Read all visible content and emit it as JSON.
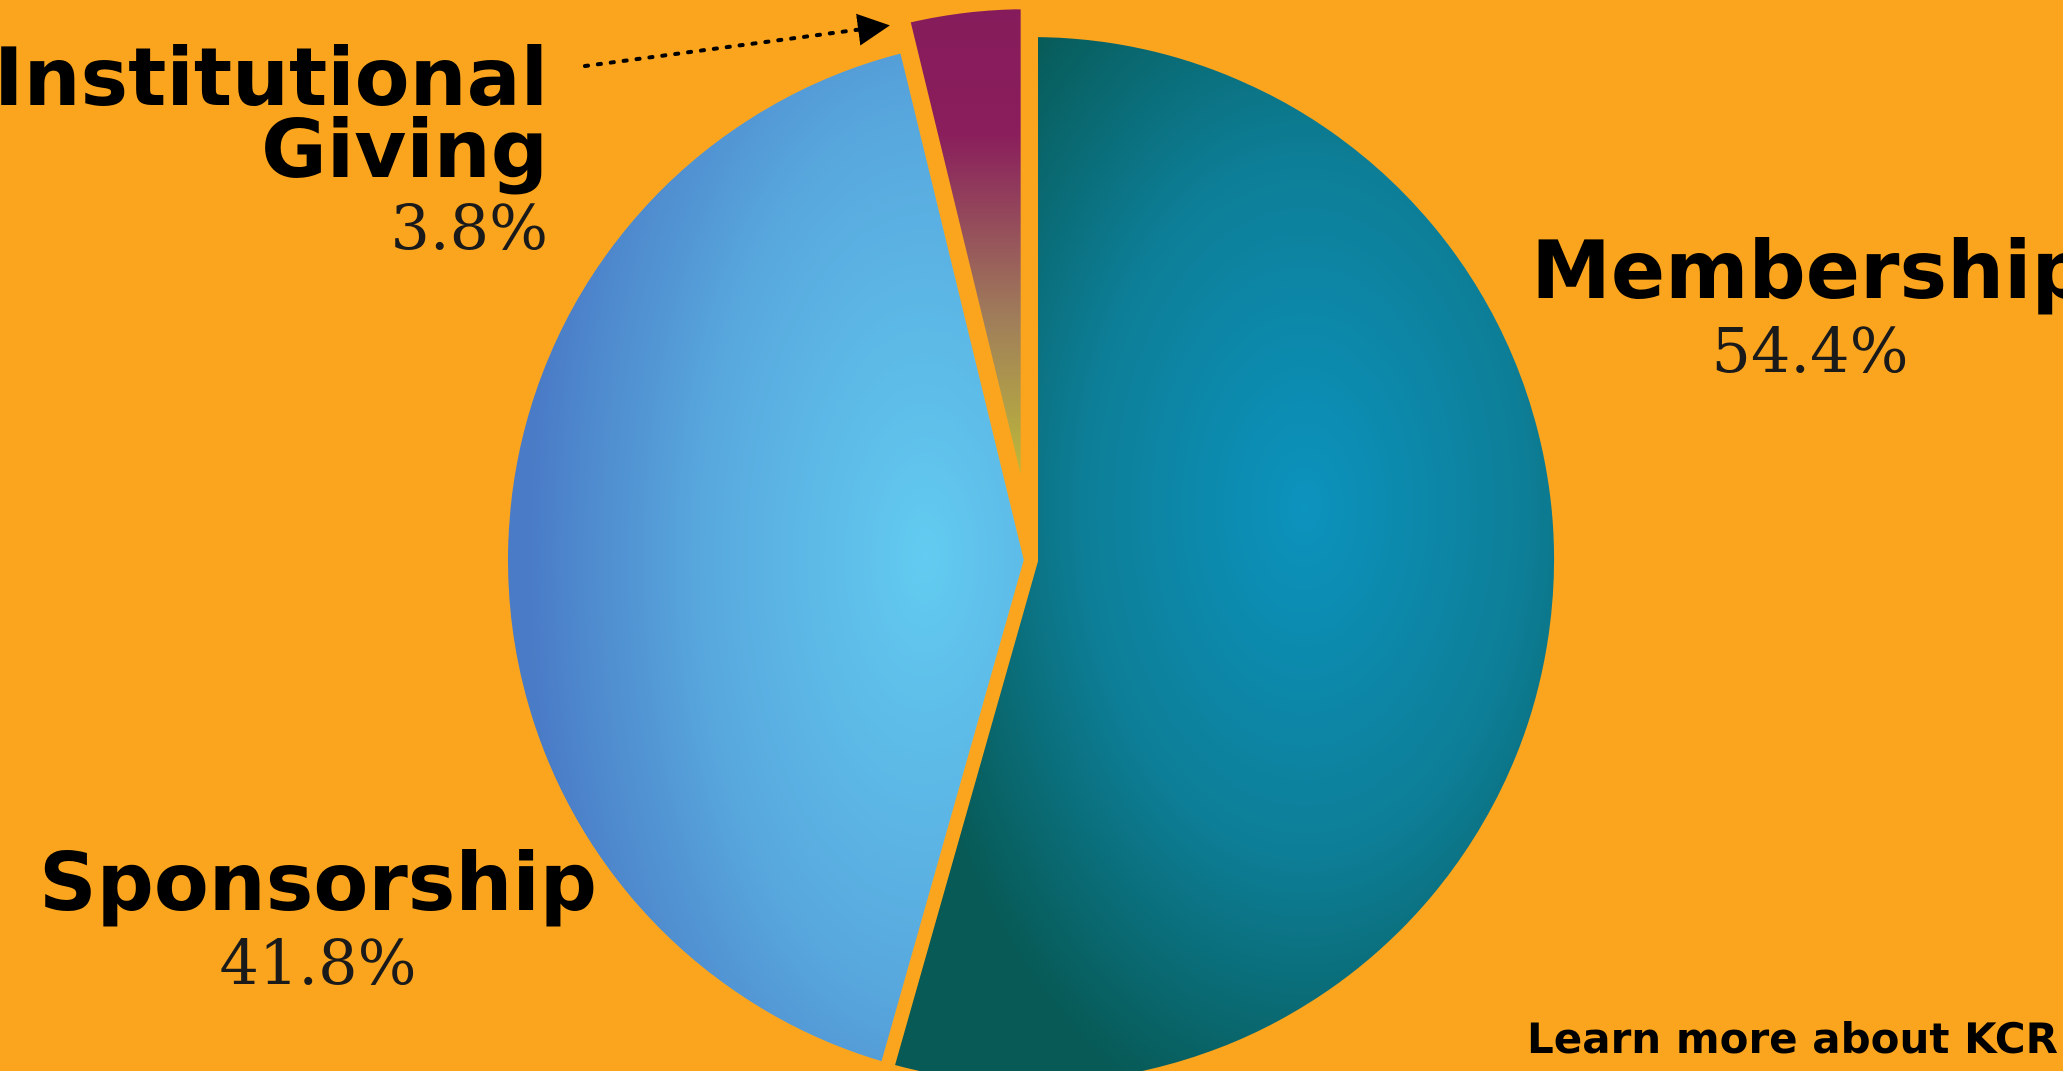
{
  "chart_data": {
    "type": "pie",
    "categories": [
      "Membership",
      "Sponsorship",
      "Institutional Giving"
    ],
    "values": [
      54.4,
      41.8,
      3.8
    ],
    "value_labels": [
      "54.4%",
      "41.8%",
      "3.8%"
    ],
    "label_lines": [
      [
        "Membership"
      ],
      [
        "Sponsorship"
      ],
      [
        "Institutional",
        "Giving"
      ]
    ],
    "exploded": [
      false,
      false,
      true
    ],
    "title": "",
    "legend": "none"
  },
  "footer": {
    "cta_text": "Learn more about KCR"
  },
  "colors": {
    "background": "#FBA51E",
    "membership": "#0B7B8E",
    "sponsorship": "#5BAEE0",
    "institutional_giving_top": "#861B5B",
    "institutional_giving_bottom": "#C9C92E",
    "text": "#000000"
  }
}
